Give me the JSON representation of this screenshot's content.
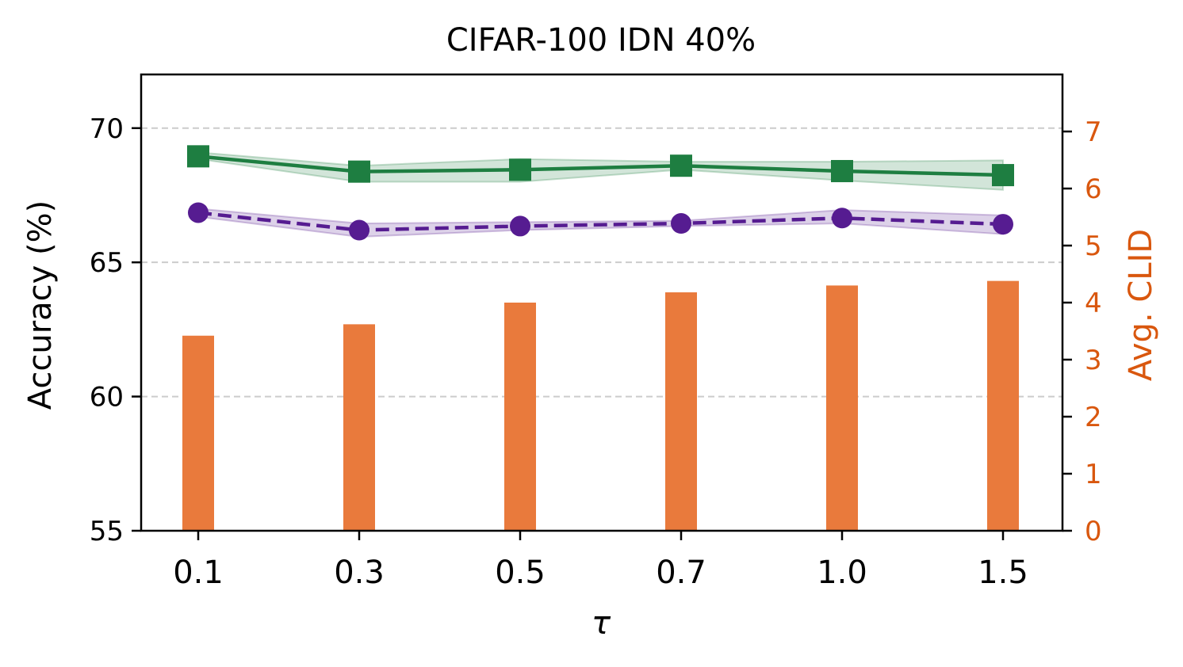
{
  "chart_data": {
    "type": "line",
    "title": "CIFAR-100 IDN 40%",
    "xlabel": "τ",
    "ylabel": "Accuracy (%)",
    "y2label": "Avg. CLID",
    "categories": [
      "0.1",
      "0.3",
      "0.5",
      "0.7",
      "1.0",
      "1.5"
    ],
    "ylim": [
      55,
      72
    ],
    "y2lim": [
      0,
      8
    ],
    "yticks": [
      "55",
      "60",
      "65",
      "70"
    ],
    "y2ticks": [
      "0",
      "1",
      "2",
      "3",
      "4",
      "5",
      "6",
      "7"
    ],
    "grid": "horizontal dashed",
    "series": [
      {
        "kind": "line",
        "axis": "left",
        "marker": "square",
        "linestyle": "solid",
        "color": "#1e7e41",
        "values": [
          68.95,
          68.38,
          68.45,
          68.6,
          68.4,
          68.25
        ],
        "band_low": [
          68.85,
          68.0,
          68.0,
          68.45,
          68.05,
          67.7
        ],
        "band_high": [
          69.1,
          68.6,
          68.85,
          68.75,
          68.75,
          68.8
        ]
      },
      {
        "kind": "line",
        "axis": "left",
        "marker": "circle",
        "linestyle": "dashed",
        "color": "#561c91",
        "values": [
          66.85,
          66.2,
          66.35,
          66.45,
          66.65,
          66.42
        ],
        "band_low": [
          66.7,
          65.95,
          66.2,
          66.35,
          66.45,
          66.05
        ],
        "band_high": [
          67.0,
          66.45,
          66.5,
          66.55,
          66.95,
          66.75
        ]
      },
      {
        "kind": "bar",
        "axis": "right",
        "color": "#e97a3c",
        "values": [
          3.42,
          3.62,
          4.0,
          4.18,
          4.3,
          4.38
        ]
      }
    ],
    "colors": {
      "axis": "#000000",
      "right_axis": "#d9570e",
      "grid": "#cccccc"
    }
  }
}
